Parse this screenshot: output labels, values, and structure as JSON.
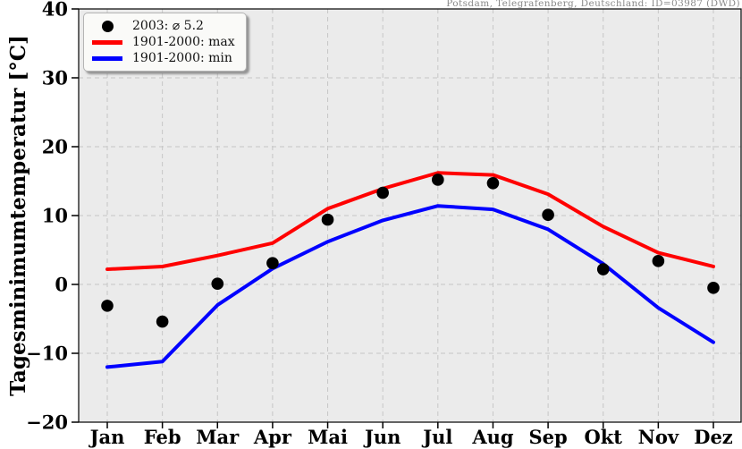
{
  "attribution": "Potsdam, Telegrafenberg, Deutschland: ID=03987 (DWD)",
  "chart_data": {
    "type": "line",
    "title": "",
    "xlabel": "",
    "ylabel": "Tagesminimumtemperatur [°C]",
    "categories": [
      "Jan",
      "Feb",
      "Mar",
      "Apr",
      "Mai",
      "Jun",
      "Jul",
      "Aug",
      "Sep",
      "Okt",
      "Nov",
      "Dez"
    ],
    "series": [
      {
        "name": "2003: ⌀ 5.2",
        "style": "scatter",
        "color": "#000000",
        "values": [
          -3.1,
          -5.4,
          0.1,
          3.1,
          9.4,
          13.3,
          15.2,
          14.7,
          10.1,
          2.2,
          3.4,
          -0.5
        ]
      },
      {
        "name": "1901-2000: max",
        "style": "line",
        "color": "#ff0000",
        "values": [
          2.2,
          2.6,
          4.2,
          6.0,
          11.0,
          13.9,
          16.2,
          15.9,
          13.1,
          8.4,
          4.6,
          2.6
        ]
      },
      {
        "name": "1901-2000: min",
        "style": "line",
        "color": "#0000ff",
        "values": [
          -12.0,
          -11.2,
          -3.0,
          2.3,
          6.2,
          9.3,
          11.4,
          10.9,
          8.0,
          3.0,
          -3.4,
          -8.4
        ]
      }
    ],
    "ylim": [
      -20,
      40
    ],
    "yticks": [
      -20,
      -10,
      0,
      10,
      20,
      30,
      40
    ],
    "grid": true,
    "grid_style": "dashed",
    "legend_position": "upper-left",
    "plot_bg_color": "#ebebeb",
    "grid_color": "#c6c6c6",
    "axis_color": "#000000"
  }
}
